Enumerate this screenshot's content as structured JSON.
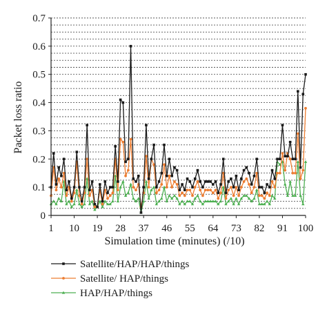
{
  "chart_data": {
    "type": "line",
    "title": "",
    "xlabel": "Simulation time (minutes) (/10)",
    "ylabel": "Packet loss ratio",
    "xlim": [
      1,
      100
    ],
    "ylim": [
      0,
      0.7
    ],
    "x_ticks": [
      1,
      10,
      19,
      28,
      37,
      46,
      55,
      64,
      73,
      82,
      91,
      100
    ],
    "x_tick_labels": [
      "1",
      "10",
      "19",
      "28",
      "37",
      "46",
      "55",
      "64",
      "73",
      "82",
      "91",
      "100"
    ],
    "y_ticks": [
      0,
      0.1,
      0.2,
      0.3,
      0.4,
      0.5,
      0.6,
      0.7
    ],
    "y_tick_labels": [
      "0",
      "0.1",
      "0.2",
      "0.3",
      "0.4",
      "0.5",
      "0.6",
      "0.7"
    ],
    "grid": "horizontal dashed every 0.025",
    "legend_position": "bottom-left, below plot",
    "series": [
      {
        "name": "Satellite/HAP/HAP/things",
        "color": "#1a1a1a",
        "marker": "square",
        "x": [
          1,
          2,
          3,
          4,
          5,
          6,
          7,
          8,
          9,
          10,
          11,
          12,
          13,
          14,
          15,
          16,
          17,
          18,
          19,
          20,
          21,
          22,
          23,
          24,
          25,
          26,
          27,
          28,
          29,
          30,
          31,
          32,
          33,
          34,
          35,
          36,
          37,
          38,
          39,
          40,
          41,
          42,
          43,
          44,
          45,
          46,
          47,
          48,
          49,
          50,
          51,
          52,
          53,
          54,
          55,
          56,
          57,
          58,
          59,
          60,
          61,
          62,
          63,
          64,
          65,
          66,
          67,
          68,
          69,
          70,
          71,
          72,
          73,
          74,
          75,
          76,
          77,
          78,
          79,
          80,
          81,
          82,
          83,
          84,
          85,
          86,
          87,
          88,
          89,
          90,
          91,
          92,
          93,
          94,
          95,
          96,
          97,
          98,
          99,
          100
        ],
        "values": [
          0.1,
          0.22,
          0.11,
          0.17,
          0.14,
          0.2,
          0.09,
          0.12,
          0.06,
          0.1,
          0.225,
          0.1,
          0.05,
          0.1,
          0.32,
          0.09,
          0.12,
          0.04,
          0.03,
          0.11,
          0.05,
          0.12,
          0.08,
          0.1,
          0.1,
          0.245,
          0.12,
          0.41,
          0.4,
          0.19,
          0.2,
          0.6,
          0.13,
          0.12,
          0.14,
          0.01,
          0.1,
          0.32,
          0.13,
          0.2,
          0.25,
          0.1,
          0.12,
          0.15,
          0.25,
          0.14,
          0.2,
          0.14,
          0.17,
          0.16,
          0.09,
          0.11,
          0.09,
          0.13,
          0.12,
          0.1,
          0.13,
          0.16,
          0.12,
          0.1,
          0.12,
          0.12,
          0.12,
          0.11,
          0.12,
          0.08,
          0.11,
          0.2,
          0.08,
          0.12,
          0.13,
          0.1,
          0.14,
          0.09,
          0.13,
          0.16,
          0.17,
          0.15,
          0.11,
          0.14,
          0.2,
          0.1,
          0.1,
          0.08,
          0.11,
          0.1,
          0.16,
          0.13,
          0.2,
          0.2,
          0.32,
          0.21,
          0.21,
          0.26,
          0.2,
          0.2,
          0.44,
          0.17,
          0.43,
          0.5
        ]
      },
      {
        "name": "Satellite/ HAP/things",
        "color": "#ed7d31",
        "marker": "dot",
        "x": [
          1,
          2,
          3,
          4,
          5,
          6,
          7,
          8,
          9,
          10,
          11,
          12,
          13,
          14,
          15,
          16,
          17,
          18,
          19,
          20,
          21,
          22,
          23,
          24,
          25,
          26,
          27,
          28,
          29,
          30,
          31,
          32,
          33,
          34,
          35,
          36,
          37,
          38,
          39,
          40,
          41,
          42,
          43,
          44,
          45,
          46,
          47,
          48,
          49,
          50,
          51,
          52,
          53,
          54,
          55,
          56,
          57,
          58,
          59,
          60,
          61,
          62,
          63,
          64,
          65,
          66,
          67,
          68,
          69,
          70,
          71,
          72,
          73,
          74,
          75,
          76,
          77,
          78,
          79,
          80,
          81,
          82,
          83,
          84,
          85,
          86,
          87,
          88,
          89,
          90,
          91,
          92,
          93,
          94,
          95,
          96,
          97,
          98,
          99,
          100
        ],
        "values": [
          0.07,
          0.17,
          0.09,
          0.13,
          0.1,
          0.15,
          0.07,
          0.1,
          0.05,
          0.08,
          0.19,
          0.07,
          0.04,
          0.08,
          0.2,
          0.07,
          0.09,
          0.03,
          0.03,
          0.09,
          0.04,
          0.09,
          0.06,
          0.07,
          0.08,
          0.2,
          0.09,
          0.27,
          0.26,
          0.14,
          0.16,
          0.27,
          0.1,
          0.09,
          0.11,
          0.03,
          0.08,
          0.21,
          0.1,
          0.2,
          0.18,
          0.08,
          0.09,
          0.11,
          0.18,
          0.1,
          0.14,
          0.1,
          0.12,
          0.11,
          0.07,
          0.08,
          0.07,
          0.09,
          0.09,
          0.07,
          0.1,
          0.12,
          0.09,
          0.07,
          0.09,
          0.09,
          0.09,
          0.08,
          0.09,
          0.06,
          0.08,
          0.15,
          0.06,
          0.09,
          0.1,
          0.07,
          0.1,
          0.07,
          0.1,
          0.12,
          0.13,
          0.11,
          0.08,
          0.1,
          0.15,
          0.07,
          0.07,
          0.06,
          0.08,
          0.07,
          0.12,
          0.1,
          0.15,
          0.15,
          0.22,
          0.16,
          0.22,
          0.2,
          0.15,
          0.15,
          0.29,
          0.13,
          0.16,
          0.38
        ]
      },
      {
        "name": "HAP/HAP/things",
        "color": "#4caf50",
        "marker": "triangle",
        "x": [
          1,
          2,
          3,
          4,
          5,
          6,
          7,
          8,
          9,
          10,
          11,
          12,
          13,
          14,
          15,
          16,
          17,
          18,
          19,
          20,
          21,
          22,
          23,
          24,
          25,
          26,
          27,
          28,
          29,
          30,
          31,
          32,
          33,
          34,
          35,
          36,
          37,
          38,
          39,
          40,
          41,
          42,
          43,
          44,
          45,
          46,
          47,
          48,
          49,
          50,
          51,
          52,
          53,
          54,
          55,
          56,
          57,
          58,
          59,
          60,
          61,
          62,
          63,
          64,
          65,
          66,
          67,
          68,
          69,
          70,
          71,
          72,
          73,
          74,
          75,
          76,
          77,
          78,
          79,
          80,
          81,
          82,
          83,
          84,
          85,
          86,
          87,
          88,
          89,
          90,
          91,
          92,
          93,
          94,
          95,
          96,
          97,
          98,
          99,
          100
        ],
        "values": [
          0.04,
          0.05,
          0.04,
          0.06,
          0.05,
          0.12,
          0.04,
          0.05,
          0.03,
          0.04,
          0.09,
          0.04,
          0.03,
          0.04,
          0.13,
          0.04,
          0.05,
          0.02,
          0.03,
          0.05,
          0.03,
          0.05,
          0.04,
          0.04,
          0.05,
          0.14,
          0.05,
          0.1,
          0.12,
          0.07,
          0.08,
          0.11,
          0.06,
          0.05,
          0.06,
          0.01,
          0.05,
          0.12,
          0.06,
          0.09,
          0.1,
          0.04,
          0.05,
          0.06,
          0.1,
          0.05,
          0.07,
          0.06,
          0.07,
          0.06,
          0.04,
          0.05,
          0.04,
          0.05,
          0.05,
          0.04,
          0.06,
          0.07,
          0.05,
          0.04,
          0.05,
          0.05,
          0.05,
          0.05,
          0.05,
          0.04,
          0.05,
          0.1,
          0.04,
          0.05,
          0.06,
          0.04,
          0.06,
          0.04,
          0.06,
          0.07,
          0.07,
          0.06,
          0.05,
          0.06,
          0.09,
          0.04,
          0.04,
          0.04,
          0.05,
          0.04,
          0.07,
          0.06,
          0.19,
          0.18,
          0.19,
          0.11,
          0.07,
          0.12,
          0.07,
          0.07,
          0.19,
          0.07,
          0.04,
          0.19
        ]
      }
    ]
  }
}
